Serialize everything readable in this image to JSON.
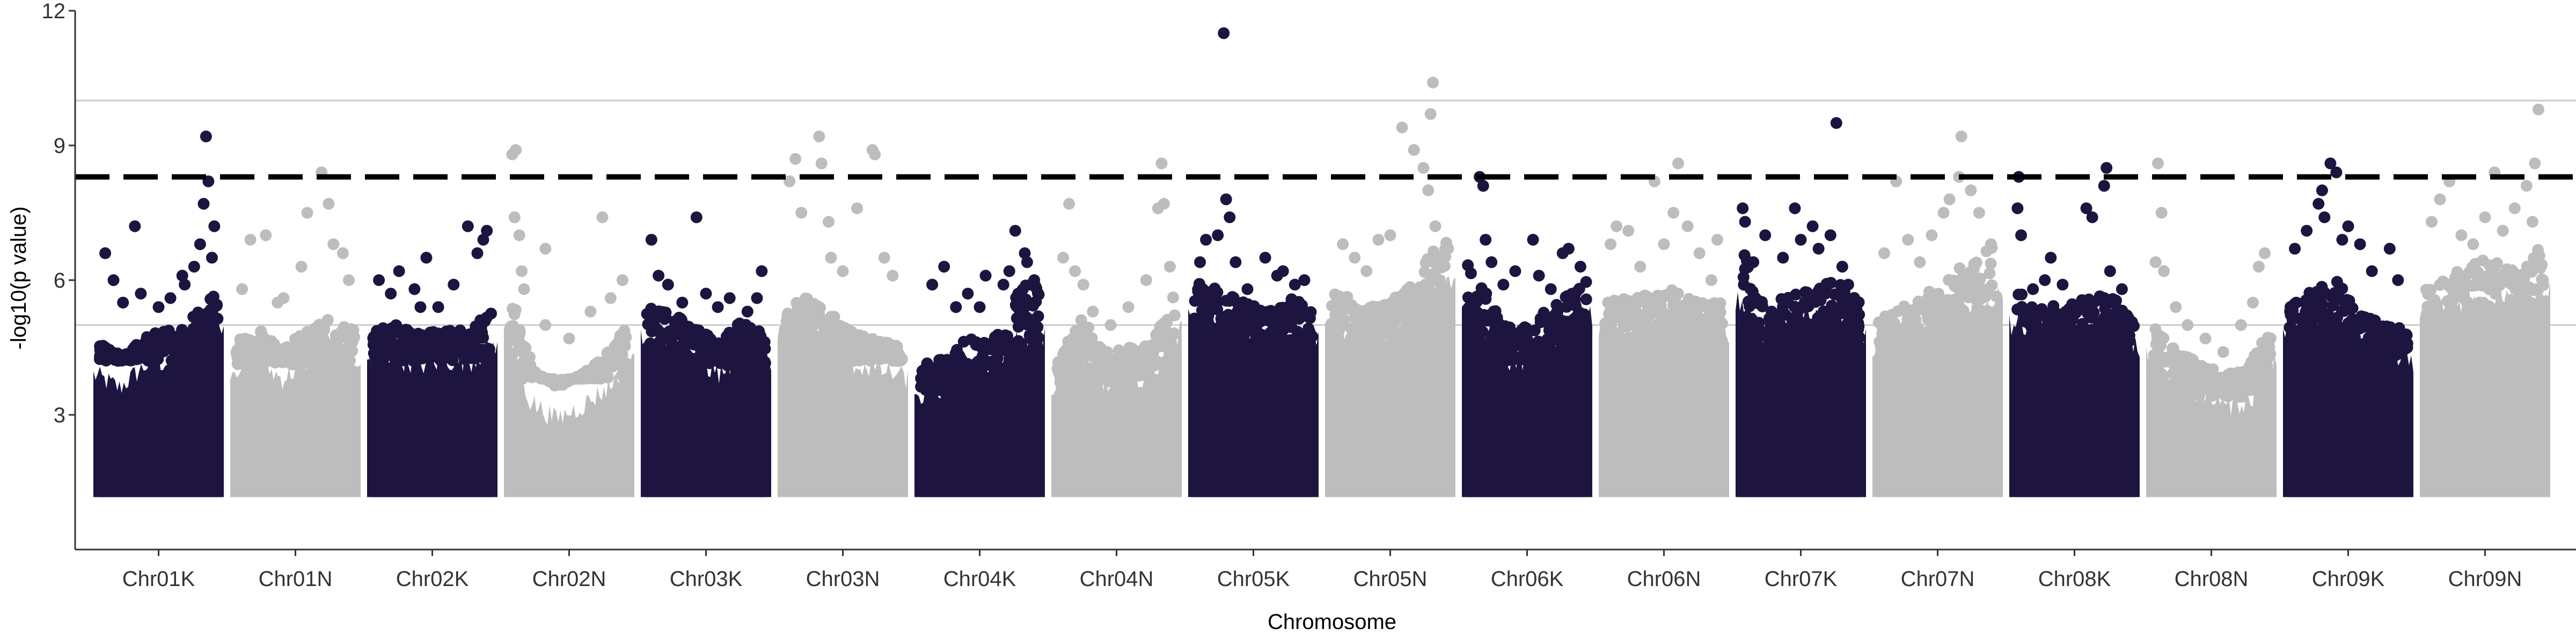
{
  "chart_data": {
    "type": "scatter",
    "subtype": "manhattan",
    "title": "",
    "xlabel": "Chromosome",
    "ylabel": "-log10(p value)",
    "ylim": [
      0,
      12
    ],
    "y_ticks": [
      3,
      6,
      9,
      12
    ],
    "grid": "faint horizontal lines at 5 and 10",
    "reference_lines": [
      5,
      10
    ],
    "threshold": 8.3,
    "point_colors": {
      "odd_chromosomes": "#1e1440",
      "even_chromosomes": "#bdbdbd"
    },
    "colors": {
      "dark": "#1e1440",
      "light": "#bdbdbd",
      "threshold_line": "#000000",
      "ref_line": "#cccccc",
      "axis": "#333333"
    },
    "point_baseline": 1.3,
    "categories": [
      "Chr01K",
      "Chr01N",
      "Chr02K",
      "Chr02N",
      "Chr03K",
      "Chr03N",
      "Chr04K",
      "Chr04N",
      "Chr05K",
      "Chr05N",
      "Chr06K",
      "Chr06N",
      "Chr07K",
      "Chr07N",
      "Chr08K",
      "Chr08N",
      "Chr09K",
      "Chr09N"
    ],
    "series": [
      {
        "chromosome": "Chr01K",
        "dense_max": 4.8,
        "dense_profile": [
          4.6,
          4.3,
          4.8,
          4.9,
          5.2,
          5.8
        ],
        "points": [
          [
            0.05,
            6.6
          ],
          [
            0.12,
            6.0
          ],
          [
            0.3,
            7.2
          ],
          [
            0.35,
            5.7
          ],
          [
            0.5,
            5.4
          ],
          [
            0.6,
            5.6
          ],
          [
            0.72,
            5.9
          ],
          [
            0.8,
            6.3
          ],
          [
            0.85,
            6.8
          ],
          [
            0.88,
            7.7
          ],
          [
            0.9,
            9.2
          ],
          [
            0.92,
            8.2
          ],
          [
            0.95,
            6.5
          ],
          [
            0.97,
            7.2
          ],
          [
            0.7,
            6.1
          ],
          [
            0.2,
            5.5
          ]
        ]
      },
      {
        "chromosome": "Chr01N",
        "dense_max": 4.7,
        "dense_profile": [
          4.7,
          4.9,
          4.5,
          4.9,
          5.2,
          4.9
        ],
        "points": [
          [
            0.05,
            5.8
          ],
          [
            0.12,
            6.9
          ],
          [
            0.25,
            7.0
          ],
          [
            0.4,
            5.6
          ],
          [
            0.55,
            6.3
          ],
          [
            0.6,
            7.5
          ],
          [
            0.72,
            8.4
          ],
          [
            0.78,
            7.7
          ],
          [
            0.82,
            6.8
          ],
          [
            0.9,
            6.6
          ],
          [
            0.95,
            6.0
          ],
          [
            0.35,
            5.5
          ]
        ]
      },
      {
        "chromosome": "Chr02K",
        "dense_max": 4.8,
        "dense_profile": [
          4.9,
          5.0,
          4.8,
          4.9,
          4.9,
          5.3
        ],
        "points": [
          [
            0.05,
            6.0
          ],
          [
            0.15,
            5.7
          ],
          [
            0.22,
            6.2
          ],
          [
            0.35,
            5.8
          ],
          [
            0.45,
            6.5
          ],
          [
            0.55,
            5.4
          ],
          [
            0.68,
            5.9
          ],
          [
            0.8,
            7.2
          ],
          [
            0.88,
            6.6
          ],
          [
            0.93,
            6.9
          ],
          [
            0.96,
            7.1
          ],
          [
            0.4,
            5.4
          ]
        ]
      },
      {
        "chromosome": "Chr02N",
        "dense_max": 4.4,
        "dense_profile": [
          5.8,
          4.0,
          3.6,
          3.9,
          4.3,
          5.1
        ],
        "points": [
          [
            0.02,
            8.8
          ],
          [
            0.05,
            8.9
          ],
          [
            0.04,
            7.4
          ],
          [
            0.08,
            7.0
          ],
          [
            0.1,
            6.2
          ],
          [
            0.12,
            5.8
          ],
          [
            0.3,
            5.0
          ],
          [
            0.3,
            6.7
          ],
          [
            0.5,
            4.7
          ],
          [
            0.68,
            5.3
          ],
          [
            0.78,
            7.4
          ],
          [
            0.85,
            5.6
          ],
          [
            0.95,
            6.0
          ]
        ]
      },
      {
        "chromosome": "Chr03K",
        "dense_max": 4.7,
        "dense_profile": [
          5.4,
          5.3,
          5.0,
          4.6,
          5.1,
          4.8
        ],
        "points": [
          [
            0.04,
            6.9
          ],
          [
            0.1,
            6.1
          ],
          [
            0.18,
            5.9
          ],
          [
            0.3,
            5.5
          ],
          [
            0.42,
            7.4
          ],
          [
            0.5,
            5.7
          ],
          [
            0.6,
            5.4
          ],
          [
            0.7,
            5.6
          ],
          [
            0.85,
            5.3
          ],
          [
            0.93,
            5.6
          ],
          [
            0.97,
            6.2
          ]
        ]
      },
      {
        "chromosome": "Chr03N",
        "dense_max": 4.8,
        "dense_profile": [
          5.6,
          5.6,
          5.3,
          4.8,
          4.7,
          4.5
        ],
        "points": [
          [
            0.05,
            8.2
          ],
          [
            0.1,
            8.7
          ],
          [
            0.15,
            7.5
          ],
          [
            0.3,
            9.2
          ],
          [
            0.32,
            8.6
          ],
          [
            0.38,
            7.3
          ],
          [
            0.4,
            6.5
          ],
          [
            0.5,
            6.2
          ],
          [
            0.62,
            7.6
          ],
          [
            0.75,
            8.9
          ],
          [
            0.77,
            8.8
          ],
          [
            0.85,
            6.5
          ],
          [
            0.92,
            6.1
          ]
        ]
      },
      {
        "chromosome": "Chr04K",
        "dense_max": 4.1,
        "dense_profile": [
          4.1,
          4.3,
          4.7,
          4.6,
          5.8,
          6.0
        ],
        "points": [
          [
            0.1,
            5.9
          ],
          [
            0.2,
            6.3
          ],
          [
            0.3,
            5.4
          ],
          [
            0.4,
            5.7
          ],
          [
            0.5,
            5.4
          ],
          [
            0.55,
            6.1
          ],
          [
            0.7,
            5.9
          ],
          [
            0.75,
            6.2
          ],
          [
            0.8,
            7.1
          ],
          [
            0.88,
            6.6
          ],
          [
            0.9,
            6.4
          ],
          [
            0.93,
            5.9
          ],
          [
            0.96,
            6.0
          ]
        ]
      },
      {
        "chromosome": "Chr04N",
        "dense_max": 4.3,
        "dense_profile": [
          4.2,
          5.2,
          4.4,
          4.5,
          4.6,
          5.9
        ],
        "points": [
          [
            0.05,
            6.5
          ],
          [
            0.1,
            7.7
          ],
          [
            0.15,
            6.2
          ],
          [
            0.22,
            5.9
          ],
          [
            0.3,
            5.3
          ],
          [
            0.45,
            5.0
          ],
          [
            0.6,
            5.4
          ],
          [
            0.75,
            6.0
          ],
          [
            0.85,
            7.6
          ],
          [
            0.88,
            8.6
          ],
          [
            0.9,
            7.7
          ],
          [
            0.95,
            6.3
          ]
        ]
      },
      {
        "chromosome": "Chr05K",
        "dense_max": 5.0,
        "dense_profile": [
          6.0,
          5.8,
          5.6,
          5.3,
          5.6,
          5.4
        ],
        "points": [
          [
            0.05,
            6.4
          ],
          [
            0.1,
            6.9
          ],
          [
            0.2,
            7.0
          ],
          [
            0.25,
            11.5
          ],
          [
            0.27,
            7.8
          ],
          [
            0.3,
            7.4
          ],
          [
            0.35,
            6.4
          ],
          [
            0.45,
            5.8
          ],
          [
            0.6,
            6.5
          ],
          [
            0.7,
            6.1
          ],
          [
            0.75,
            6.2
          ],
          [
            0.85,
            5.9
          ],
          [
            0.93,
            6.0
          ]
        ]
      },
      {
        "chromosome": "Chr05N",
        "dense_max": 5.3,
        "dense_profile": [
          5.7,
          5.6,
          5.4,
          5.7,
          6.5,
          7.0
        ],
        "points": [
          [
            0.1,
            6.8
          ],
          [
            0.2,
            6.5
          ],
          [
            0.3,
            6.2
          ],
          [
            0.4,
            6.9
          ],
          [
            0.5,
            7.0
          ],
          [
            0.6,
            9.4
          ],
          [
            0.7,
            8.9
          ],
          [
            0.78,
            8.5
          ],
          [
            0.82,
            8.0
          ],
          [
            0.84,
            9.7
          ],
          [
            0.86,
            10.4
          ],
          [
            0.88,
            7.2
          ],
          [
            0.9,
            6.5
          ]
        ]
      },
      {
        "chromosome": "Chr06K",
        "dense_max": 4.8,
        "dense_profile": [
          6.5,
          5.5,
          4.8,
          5.2,
          5.6,
          6.0
        ],
        "points": [
          [
            0.1,
            8.3
          ],
          [
            0.13,
            8.1
          ],
          [
            0.15,
            6.9
          ],
          [
            0.2,
            6.4
          ],
          [
            0.3,
            5.9
          ],
          [
            0.4,
            6.2
          ],
          [
            0.55,
            6.9
          ],
          [
            0.6,
            6.1
          ],
          [
            0.7,
            5.8
          ],
          [
            0.8,
            6.6
          ],
          [
            0.85,
            6.7
          ],
          [
            0.95,
            6.3
          ]
        ]
      },
      {
        "chromosome": "Chr06N",
        "dense_max": 5.2,
        "dense_profile": [
          5.6,
          5.6,
          5.7,
          5.8,
          5.5,
          5.5
        ],
        "points": [
          [
            0.05,
            6.8
          ],
          [
            0.1,
            7.2
          ],
          [
            0.2,
            7.1
          ],
          [
            0.3,
            6.3
          ],
          [
            0.42,
            8.2
          ],
          [
            0.5,
            6.8
          ],
          [
            0.58,
            7.5
          ],
          [
            0.62,
            8.6
          ],
          [
            0.7,
            7.2
          ],
          [
            0.8,
            6.6
          ],
          [
            0.9,
            6.0
          ],
          [
            0.95,
            6.9
          ]
        ]
      },
      {
        "chromosome": "Chr07K",
        "dense_max": 4.8,
        "dense_profile": [
          7.0,
          5.3,
          5.8,
          5.9,
          6.0,
          5.5
        ],
        "points": [
          [
            0.01,
            7.6
          ],
          [
            0.03,
            7.3
          ],
          [
            0.1,
            6.4
          ],
          [
            0.2,
            7.0
          ],
          [
            0.35,
            6.5
          ],
          [
            0.45,
            7.6
          ],
          [
            0.5,
            6.9
          ],
          [
            0.6,
            7.2
          ],
          [
            0.65,
            6.7
          ],
          [
            0.75,
            7.0
          ],
          [
            0.8,
            9.5
          ],
          [
            0.85,
            6.3
          ],
          [
            0.9,
            5.9
          ]
        ]
      },
      {
        "chromosome": "Chr07N",
        "dense_max": 5.0,
        "dense_profile": [
          5.2,
          5.4,
          5.7,
          6.2,
          6.4,
          6.9
        ],
        "points": [
          [
            0.05,
            6.6
          ],
          [
            0.15,
            8.2
          ],
          [
            0.25,
            6.9
          ],
          [
            0.35,
            6.4
          ],
          [
            0.45,
            7.0
          ],
          [
            0.55,
            7.5
          ],
          [
            0.6,
            7.8
          ],
          [
            0.68,
            8.3
          ],
          [
            0.7,
            9.2
          ],
          [
            0.78,
            8.0
          ],
          [
            0.85,
            7.5
          ],
          [
            0.95,
            6.8
          ]
        ]
      },
      {
        "chromosome": "Chr08K",
        "dense_max": 4.6,
        "dense_profile": [
          5.8,
          5.5,
          5.4,
          5.6,
          5.7,
          5.1
        ],
        "points": [
          [
            0.02,
            7.6
          ],
          [
            0.03,
            8.3
          ],
          [
            0.05,
            7.0
          ],
          [
            0.15,
            5.8
          ],
          [
            0.25,
            6.0
          ],
          [
            0.3,
            6.5
          ],
          [
            0.4,
            5.9
          ],
          [
            0.6,
            7.6
          ],
          [
            0.65,
            7.4
          ],
          [
            0.75,
            8.1
          ],
          [
            0.77,
            8.5
          ],
          [
            0.8,
            6.2
          ],
          [
            0.9,
            5.8
          ]
        ]
      },
      {
        "chromosome": "Chr08N",
        "dense_max": 4.0,
        "dense_profile": [
          5.2,
          4.4,
          4.2,
          3.9,
          4.0,
          5.0
        ],
        "points": [
          [
            0.03,
            6.4
          ],
          [
            0.05,
            8.6
          ],
          [
            0.08,
            7.5
          ],
          [
            0.1,
            6.2
          ],
          [
            0.2,
            5.4
          ],
          [
            0.3,
            5.0
          ],
          [
            0.45,
            4.7
          ],
          [
            0.6,
            4.4
          ],
          [
            0.75,
            5.0
          ],
          [
            0.85,
            5.5
          ],
          [
            0.9,
            6.3
          ],
          [
            0.95,
            6.6
          ]
        ]
      },
      {
        "chromosome": "Chr09K",
        "dense_max": 4.9,
        "dense_profile": [
          5.4,
          5.8,
          6.0,
          5.3,
          5.0,
          4.9
        ],
        "points": [
          [
            0.05,
            6.7
          ],
          [
            0.15,
            7.1
          ],
          [
            0.25,
            7.7
          ],
          [
            0.28,
            8.0
          ],
          [
            0.3,
            7.4
          ],
          [
            0.35,
            8.6
          ],
          [
            0.4,
            8.4
          ],
          [
            0.45,
            6.9
          ],
          [
            0.5,
            7.2
          ],
          [
            0.6,
            6.8
          ],
          [
            0.7,
            6.2
          ],
          [
            0.85,
            6.7
          ],
          [
            0.92,
            6.0
          ]
        ]
      },
      {
        "chromosome": "Chr09N",
        "dense_max": 5.1,
        "dense_profile": [
          5.8,
          6.2,
          6.4,
          6.5,
          6.1,
          6.9
        ],
        "points": [
          [
            0.05,
            7.3
          ],
          [
            0.12,
            7.8
          ],
          [
            0.2,
            8.2
          ],
          [
            0.3,
            7.0
          ],
          [
            0.4,
            6.8
          ],
          [
            0.5,
            7.4
          ],
          [
            0.58,
            8.4
          ],
          [
            0.65,
            7.1
          ],
          [
            0.75,
            7.6
          ],
          [
            0.85,
            8.1
          ],
          [
            0.92,
            8.6
          ],
          [
            0.95,
            9.8
          ],
          [
            0.9,
            7.3
          ]
        ]
      }
    ]
  }
}
